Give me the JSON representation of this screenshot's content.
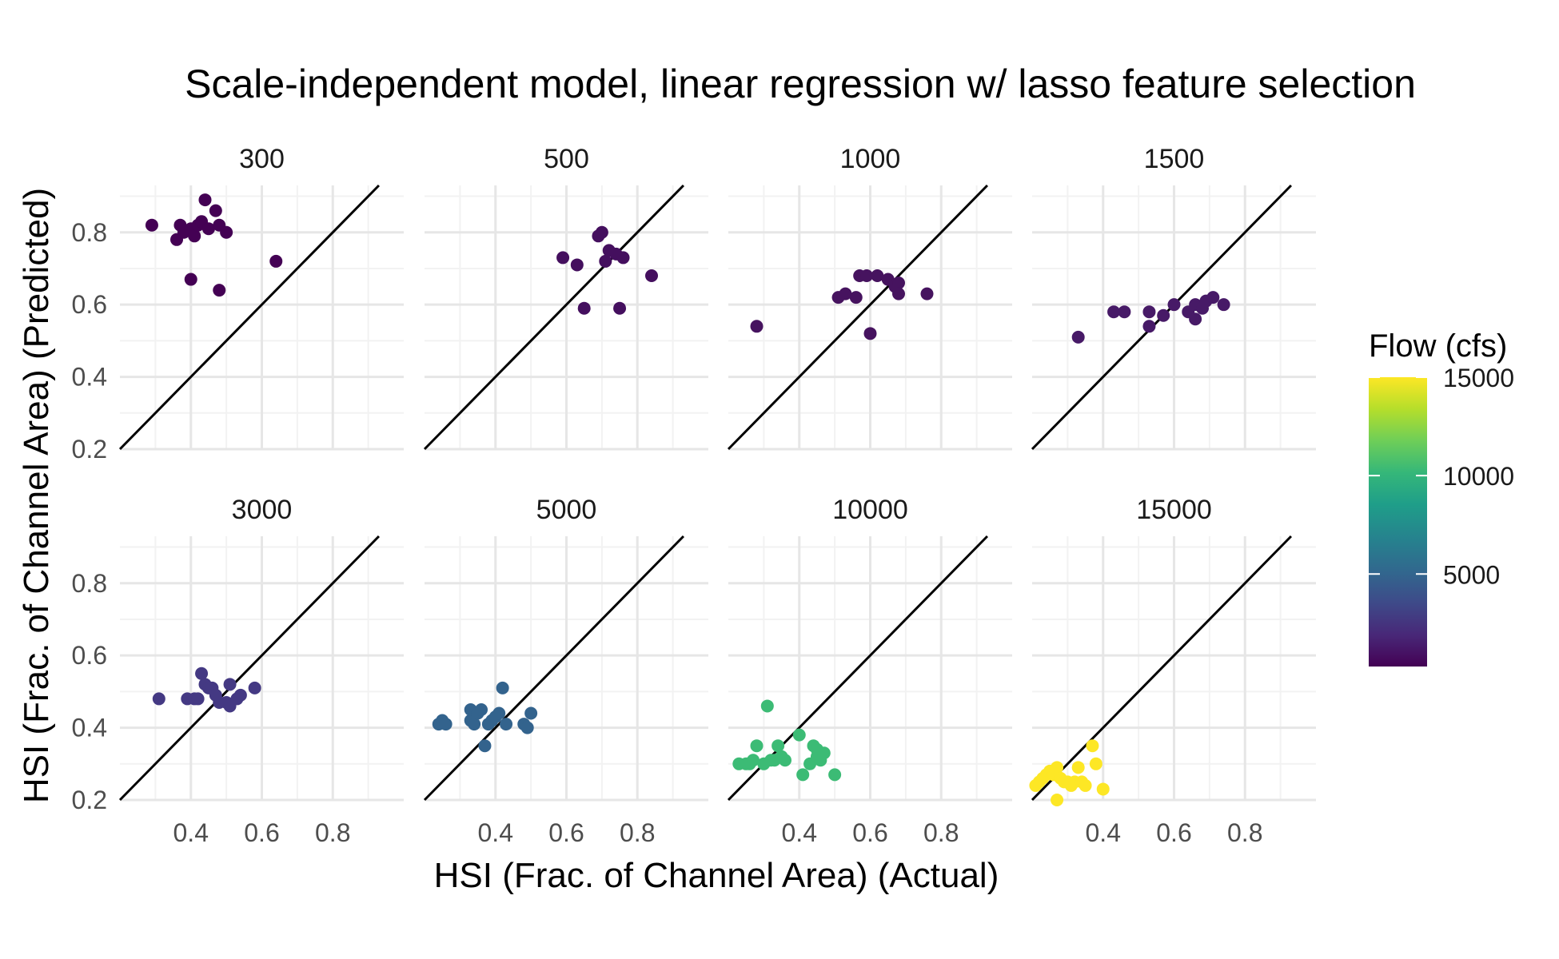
{
  "chart_data": {
    "type": "scatter",
    "title": "Scale-independent model, linear regression w/ lasso feature selection",
    "xlabel": "HSI (Frac. of Channel Area) (Actual)",
    "ylabel": "HSI (Frac. of Channel Area) (Predicted)",
    "xlim": [
      0.2,
      1.0
    ],
    "ylim": [
      0.2,
      0.93
    ],
    "x_ticks": [
      0.4,
      0.6,
      0.8
    ],
    "x_tick_labels": [
      "0.4",
      "0.6",
      "0.8"
    ],
    "y_ticks": [
      0.2,
      0.4,
      0.6,
      0.8
    ],
    "y_tick_labels": [
      "0.2",
      "0.4",
      "0.6",
      "0.8"
    ],
    "grid": true,
    "reference_line": "y = x",
    "legend": {
      "title": "Flow (cfs)",
      "position": "right",
      "type": "colorbar",
      "min": 300,
      "max": 15000,
      "breaks": [
        5000,
        10000,
        15000
      ],
      "break_labels": [
        "5000",
        "10000",
        "15000"
      ],
      "colors": [
        "#440154",
        "#482878",
        "#3e4a89",
        "#31688e",
        "#26828e",
        "#1f9e89",
        "#35b779",
        "#6ece58",
        "#b5de2b",
        "#fde725"
      ]
    },
    "panels": [
      {
        "label": "300",
        "flow": 300,
        "color": "#440154",
        "points": [
          [
            0.29,
            0.82
          ],
          [
            0.36,
            0.78
          ],
          [
            0.37,
            0.82
          ],
          [
            0.38,
            0.8
          ],
          [
            0.4,
            0.81
          ],
          [
            0.41,
            0.79
          ],
          [
            0.42,
            0.82
          ],
          [
            0.43,
            0.83
          ],
          [
            0.44,
            0.89
          ],
          [
            0.45,
            0.81
          ],
          [
            0.47,
            0.86
          ],
          [
            0.48,
            0.82
          ],
          [
            0.5,
            0.8
          ],
          [
            0.4,
            0.67
          ],
          [
            0.48,
            0.64
          ],
          [
            0.64,
            0.72
          ]
        ]
      },
      {
        "label": "500",
        "flow": 500,
        "color": "#440f5e",
        "points": [
          [
            0.59,
            0.73
          ],
          [
            0.63,
            0.71
          ],
          [
            0.65,
            0.59
          ],
          [
            0.69,
            0.79
          ],
          [
            0.7,
            0.8
          ],
          [
            0.71,
            0.72
          ],
          [
            0.72,
            0.75
          ],
          [
            0.74,
            0.74
          ],
          [
            0.75,
            0.59
          ],
          [
            0.76,
            0.73
          ],
          [
            0.84,
            0.68
          ]
        ]
      },
      {
        "label": "1000",
        "flow": 1000,
        "color": "#46135f",
        "points": [
          [
            0.28,
            0.54
          ],
          [
            0.51,
            0.62
          ],
          [
            0.53,
            0.63
          ],
          [
            0.56,
            0.62
          ],
          [
            0.57,
            0.68
          ],
          [
            0.59,
            0.68
          ],
          [
            0.6,
            0.52
          ],
          [
            0.62,
            0.68
          ],
          [
            0.65,
            0.67
          ],
          [
            0.67,
            0.65
          ],
          [
            0.68,
            0.66
          ],
          [
            0.68,
            0.63
          ],
          [
            0.76,
            0.63
          ]
        ]
      },
      {
        "label": "1500",
        "flow": 1500,
        "color": "#471a67",
        "points": [
          [
            0.33,
            0.51
          ],
          [
            0.43,
            0.58
          ],
          [
            0.46,
            0.58
          ],
          [
            0.53,
            0.54
          ],
          [
            0.53,
            0.58
          ],
          [
            0.57,
            0.57
          ],
          [
            0.6,
            0.6
          ],
          [
            0.64,
            0.58
          ],
          [
            0.66,
            0.56
          ],
          [
            0.66,
            0.6
          ],
          [
            0.68,
            0.59
          ],
          [
            0.69,
            0.61
          ],
          [
            0.71,
            0.62
          ],
          [
            0.74,
            0.6
          ]
        ]
      },
      {
        "label": "3000",
        "flow": 3000,
        "color": "#443983",
        "points": [
          [
            0.31,
            0.48
          ],
          [
            0.39,
            0.48
          ],
          [
            0.41,
            0.48
          ],
          [
            0.42,
            0.48
          ],
          [
            0.43,
            0.55
          ],
          [
            0.44,
            0.52
          ],
          [
            0.45,
            0.51
          ],
          [
            0.46,
            0.51
          ],
          [
            0.47,
            0.49
          ],
          [
            0.48,
            0.47
          ],
          [
            0.5,
            0.47
          ],
          [
            0.51,
            0.46
          ],
          [
            0.51,
            0.52
          ],
          [
            0.53,
            0.48
          ],
          [
            0.54,
            0.49
          ],
          [
            0.58,
            0.51
          ]
        ]
      },
      {
        "label": "5000",
        "flow": 5000,
        "color": "#33638d",
        "points": [
          [
            0.24,
            0.41
          ],
          [
            0.25,
            0.42
          ],
          [
            0.26,
            0.41
          ],
          [
            0.33,
            0.42
          ],
          [
            0.33,
            0.45
          ],
          [
            0.34,
            0.41
          ],
          [
            0.35,
            0.44
          ],
          [
            0.36,
            0.45
          ],
          [
            0.37,
            0.35
          ],
          [
            0.38,
            0.41
          ],
          [
            0.39,
            0.42
          ],
          [
            0.4,
            0.43
          ],
          [
            0.41,
            0.44
          ],
          [
            0.42,
            0.51
          ],
          [
            0.43,
            0.41
          ],
          [
            0.48,
            0.41
          ],
          [
            0.49,
            0.4
          ],
          [
            0.5,
            0.44
          ]
        ]
      },
      {
        "label": "10000",
        "flow": 10000,
        "color": "#3cbb75",
        "points": [
          [
            0.23,
            0.3
          ],
          [
            0.25,
            0.3
          ],
          [
            0.26,
            0.3
          ],
          [
            0.27,
            0.31
          ],
          [
            0.28,
            0.35
          ],
          [
            0.3,
            0.3
          ],
          [
            0.31,
            0.46
          ],
          [
            0.32,
            0.31
          ],
          [
            0.33,
            0.31
          ],
          [
            0.34,
            0.35
          ],
          [
            0.35,
            0.32
          ],
          [
            0.36,
            0.31
          ],
          [
            0.4,
            0.38
          ],
          [
            0.41,
            0.27
          ],
          [
            0.43,
            0.3
          ],
          [
            0.44,
            0.35
          ],
          [
            0.45,
            0.34
          ],
          [
            0.45,
            0.32
          ],
          [
            0.46,
            0.31
          ],
          [
            0.47,
            0.33
          ],
          [
            0.5,
            0.27
          ]
        ]
      },
      {
        "label": "15000",
        "flow": 15000,
        "color": "#fde725",
        "points": [
          [
            0.21,
            0.24
          ],
          [
            0.22,
            0.25
          ],
          [
            0.23,
            0.26
          ],
          [
            0.24,
            0.27
          ],
          [
            0.25,
            0.28
          ],
          [
            0.26,
            0.27
          ],
          [
            0.27,
            0.29
          ],
          [
            0.28,
            0.26
          ],
          [
            0.29,
            0.25
          ],
          [
            0.3,
            0.25
          ],
          [
            0.31,
            0.24
          ],
          [
            0.32,
            0.25
          ],
          [
            0.33,
            0.29
          ],
          [
            0.34,
            0.25
          ],
          [
            0.35,
            0.24
          ],
          [
            0.37,
            0.35
          ],
          [
            0.38,
            0.3
          ],
          [
            0.4,
            0.23
          ],
          [
            0.27,
            0.2
          ]
        ]
      }
    ]
  }
}
